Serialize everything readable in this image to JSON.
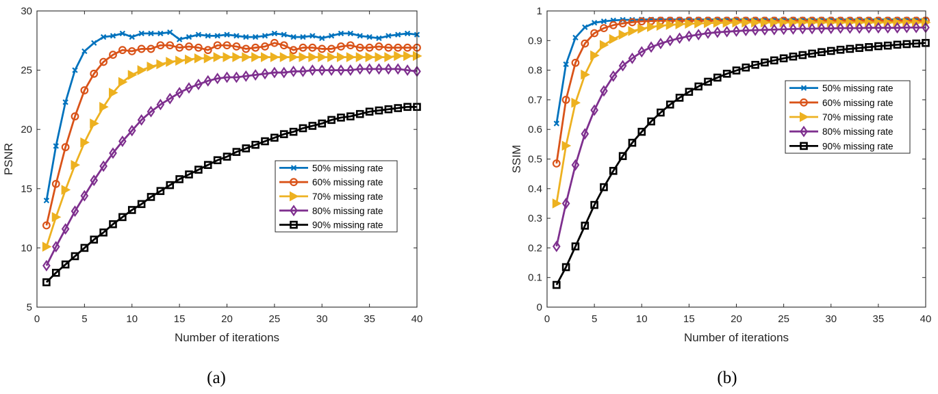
{
  "figure": {
    "captions": [
      "(a)",
      "(b)"
    ]
  },
  "chart_data": [
    {
      "type": "line",
      "caption": "(a)",
      "xlabel": "Number of iterations",
      "ylabel": "PSNR",
      "xlim": [
        0,
        40
      ],
      "ylim": [
        5,
        30
      ],
      "xticks": [
        0,
        5,
        10,
        15,
        20,
        25,
        30,
        35,
        40
      ],
      "yticks": [
        5,
        10,
        15,
        20,
        25,
        30
      ],
      "legend_position": "center-right",
      "x": [
        1,
        2,
        3,
        4,
        5,
        6,
        7,
        8,
        9,
        10,
        11,
        12,
        13,
        14,
        15,
        16,
        17,
        18,
        19,
        20,
        21,
        22,
        23,
        24,
        25,
        26,
        27,
        28,
        29,
        30,
        31,
        32,
        33,
        34,
        35,
        36,
        37,
        38,
        39,
        40
      ],
      "series": [
        {
          "name": "50% missing rate",
          "color": "#0072BD",
          "marker": "x",
          "values": [
            14.0,
            18.6,
            22.3,
            25.0,
            26.6,
            27.3,
            27.8,
            27.9,
            28.1,
            27.8,
            28.1,
            28.1,
            28.1,
            28.2,
            27.6,
            27.8,
            28.0,
            27.9,
            27.9,
            28.0,
            27.9,
            27.8,
            27.8,
            27.9,
            28.1,
            28.0,
            27.8,
            27.8,
            27.9,
            27.7,
            27.9,
            28.1,
            28.1,
            27.9,
            27.8,
            27.7,
            27.9,
            28.0,
            28.1,
            28.0
          ]
        },
        {
          "name": "60% missing rate",
          "color": "#D95319",
          "marker": "o",
          "values": [
            11.9,
            15.4,
            18.5,
            21.1,
            23.3,
            24.7,
            25.7,
            26.3,
            26.7,
            26.6,
            26.8,
            26.8,
            27.1,
            27.1,
            26.9,
            27.0,
            26.9,
            26.7,
            27.1,
            27.1,
            27.0,
            26.8,
            26.9,
            27.0,
            27.3,
            27.1,
            26.7,
            26.9,
            26.9,
            26.8,
            26.8,
            27.0,
            27.1,
            26.9,
            26.9,
            27.0,
            26.9,
            26.9,
            26.9,
            26.9
          ]
        },
        {
          "name": "70% missing rate",
          "color": "#EDB120",
          "marker": "triangle-right",
          "values": [
            10.1,
            12.6,
            14.9,
            17.0,
            18.9,
            20.5,
            21.9,
            23.1,
            24.0,
            24.6,
            25.0,
            25.3,
            25.5,
            25.7,
            25.8,
            25.9,
            26.0,
            26.0,
            26.1,
            26.1,
            26.1,
            26.1,
            26.1,
            26.1,
            26.1,
            26.1,
            26.1,
            26.1,
            26.1,
            26.1,
            26.1,
            26.1,
            26.1,
            26.1,
            26.1,
            26.1,
            26.1,
            26.2,
            26.2,
            26.2
          ]
        },
        {
          "name": "80% missing rate",
          "color": "#7E2F8E",
          "marker": "diamond",
          "values": [
            8.5,
            10.1,
            11.6,
            13.1,
            14.4,
            15.7,
            16.9,
            18.0,
            19.0,
            19.9,
            20.8,
            21.5,
            22.1,
            22.6,
            23.1,
            23.5,
            23.8,
            24.1,
            24.3,
            24.4,
            24.4,
            24.5,
            24.6,
            24.7,
            24.8,
            24.8,
            24.9,
            24.9,
            25.0,
            25.0,
            25.0,
            25.0,
            25.0,
            25.1,
            25.1,
            25.1,
            25.1,
            25.1,
            25.0,
            24.9
          ]
        },
        {
          "name": "90% missing rate",
          "color": "#000000",
          "marker": "square",
          "values": [
            7.1,
            7.9,
            8.6,
            9.3,
            10.0,
            10.7,
            11.3,
            12.0,
            12.6,
            13.2,
            13.7,
            14.3,
            14.8,
            15.3,
            15.8,
            16.2,
            16.6,
            17.0,
            17.4,
            17.7,
            18.1,
            18.4,
            18.7,
            19.0,
            19.3,
            19.6,
            19.8,
            20.1,
            20.3,
            20.5,
            20.8,
            21.0,
            21.1,
            21.3,
            21.5,
            21.6,
            21.7,
            21.8,
            21.9,
            21.9
          ]
        }
      ]
    },
    {
      "type": "line",
      "caption": "(b)",
      "xlabel": "Number of iterations",
      "ylabel": "SSIM",
      "xlim": [
        0,
        40
      ],
      "ylim": [
        0,
        1
      ],
      "xticks": [
        0,
        5,
        10,
        15,
        20,
        25,
        30,
        35,
        40
      ],
      "yticks": [
        0,
        0.1,
        0.2,
        0.3,
        0.4,
        0.5,
        0.6,
        0.7,
        0.8,
        0.9,
        1
      ],
      "legend_position": "center-right",
      "x": [
        1,
        2,
        3,
        4,
        5,
        6,
        7,
        8,
        9,
        10,
        11,
        12,
        13,
        14,
        15,
        16,
        17,
        18,
        19,
        20,
        21,
        22,
        23,
        24,
        25,
        26,
        27,
        28,
        29,
        30,
        31,
        32,
        33,
        34,
        35,
        36,
        37,
        38,
        39,
        40
      ],
      "series": [
        {
          "name": "50% missing rate",
          "color": "#0072BD",
          "marker": "x",
          "values": [
            0.62,
            0.82,
            0.91,
            0.945,
            0.96,
            0.965,
            0.968,
            0.97,
            0.97,
            0.971,
            0.971,
            0.971,
            0.971,
            0.971,
            0.971,
            0.971,
            0.971,
            0.971,
            0.971,
            0.971,
            0.971,
            0.971,
            0.971,
            0.971,
            0.971,
            0.971,
            0.971,
            0.971,
            0.971,
            0.971,
            0.971,
            0.971,
            0.971,
            0.971,
            0.971,
            0.971,
            0.971,
            0.971,
            0.971,
            0.971
          ]
        },
        {
          "name": "60% missing rate",
          "color": "#D95319",
          "marker": "o",
          "values": [
            0.485,
            0.7,
            0.825,
            0.89,
            0.925,
            0.942,
            0.952,
            0.958,
            0.962,
            0.965,
            0.966,
            0.967,
            0.967,
            0.967,
            0.967,
            0.967,
            0.967,
            0.967,
            0.967,
            0.967,
            0.967,
            0.967,
            0.967,
            0.967,
            0.967,
            0.967,
            0.967,
            0.967,
            0.967,
            0.967,
            0.967,
            0.967,
            0.967,
            0.967,
            0.967,
            0.967,
            0.967,
            0.967,
            0.967,
            0.967
          ]
        },
        {
          "name": "70% missing rate",
          "color": "#EDB120",
          "marker": "triangle-right",
          "values": [
            0.35,
            0.545,
            0.69,
            0.785,
            0.85,
            0.885,
            0.905,
            0.92,
            0.932,
            0.94,
            0.946,
            0.95,
            0.953,
            0.955,
            0.957,
            0.958,
            0.959,
            0.96,
            0.96,
            0.961,
            0.961,
            0.961,
            0.961,
            0.961,
            0.961,
            0.961,
            0.961,
            0.961,
            0.961,
            0.961,
            0.961,
            0.961,
            0.961,
            0.961,
            0.961,
            0.961,
            0.961,
            0.961,
            0.961,
            0.961
          ]
        },
        {
          "name": "80% missing rate",
          "color": "#7E2F8E",
          "marker": "diamond",
          "values": [
            0.205,
            0.35,
            0.48,
            0.585,
            0.665,
            0.73,
            0.78,
            0.815,
            0.84,
            0.862,
            0.878,
            0.89,
            0.9,
            0.908,
            0.915,
            0.92,
            0.925,
            0.928,
            0.93,
            0.932,
            0.934,
            0.935,
            0.936,
            0.937,
            0.938,
            0.939,
            0.94,
            0.94,
            0.941,
            0.941,
            0.942,
            0.942,
            0.942,
            0.943,
            0.943,
            0.943,
            0.943,
            0.944,
            0.944,
            0.944
          ]
        },
        {
          "name": "90% missing rate",
          "color": "#000000",
          "marker": "square",
          "values": [
            0.075,
            0.135,
            0.205,
            0.275,
            0.345,
            0.405,
            0.46,
            0.51,
            0.555,
            0.592,
            0.627,
            0.657,
            0.684,
            0.707,
            0.727,
            0.745,
            0.761,
            0.775,
            0.788,
            0.799,
            0.809,
            0.818,
            0.826,
            0.833,
            0.84,
            0.846,
            0.851,
            0.856,
            0.861,
            0.865,
            0.869,
            0.872,
            0.875,
            0.878,
            0.881,
            0.883,
            0.886,
            0.888,
            0.89,
            0.892
          ]
        }
      ]
    }
  ]
}
